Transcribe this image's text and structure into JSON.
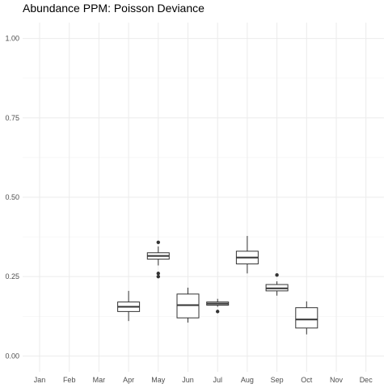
{
  "chart_data": {
    "type": "boxplot",
    "title": "Abundance PPM: Poisson Deviance",
    "xlabel": "",
    "ylabel": "",
    "ylim": [
      -0.05,
      1.05
    ],
    "yticks": [
      0.0,
      0.25,
      0.5,
      0.75,
      1.0
    ],
    "ytick_labels": [
      "0.00",
      "0.25",
      "0.50",
      "0.75",
      "1.00"
    ],
    "grid": true,
    "categories": [
      "Jan",
      "Feb",
      "Mar",
      "Apr",
      "May",
      "Jun",
      "Jul",
      "Aug",
      "Sep",
      "Oct",
      "Nov",
      "Dec"
    ],
    "boxes": [
      {
        "category": "Apr",
        "min": 0.11,
        "q1": 0.14,
        "median": 0.155,
        "q3": 0.17,
        "max": 0.205,
        "outliers": []
      },
      {
        "category": "May",
        "min": 0.285,
        "q1": 0.305,
        "median": 0.315,
        "q3": 0.325,
        "max": 0.345,
        "outliers": [
          0.26,
          0.25,
          0.358
        ]
      },
      {
        "category": "Jun",
        "min": 0.105,
        "q1": 0.12,
        "median": 0.16,
        "q3": 0.195,
        "max": 0.215,
        "outliers": []
      },
      {
        "category": "Jul",
        "min": 0.155,
        "q1": 0.16,
        "median": 0.165,
        "q3": 0.17,
        "max": 0.18,
        "outliers": [
          0.14
        ]
      },
      {
        "category": "Aug",
        "min": 0.26,
        "q1": 0.29,
        "median": 0.31,
        "q3": 0.33,
        "max": 0.378,
        "outliers": []
      },
      {
        "category": "Sep",
        "min": 0.19,
        "q1": 0.205,
        "median": 0.213,
        "q3": 0.225,
        "max": 0.235,
        "outliers": [
          0.255
        ]
      },
      {
        "category": "Oct",
        "min": 0.068,
        "q1": 0.088,
        "median": 0.115,
        "q3": 0.152,
        "max": 0.172,
        "outliers": []
      }
    ]
  }
}
